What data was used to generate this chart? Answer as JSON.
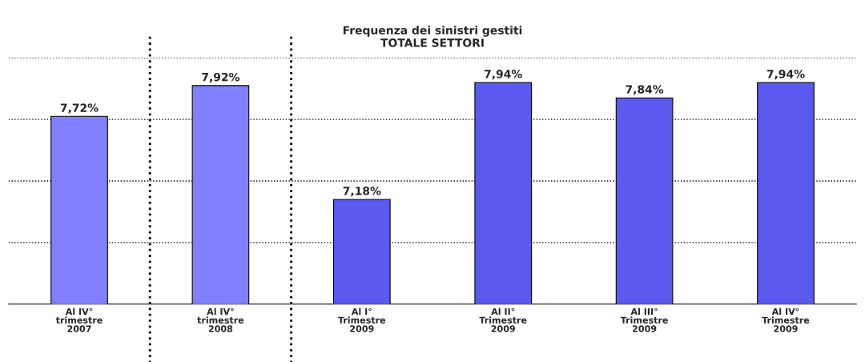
{
  "chart_data": {
    "type": "bar",
    "title": "Frequenza dei sinistri gestiti\nTOTALE SETTORI",
    "categories": [
      "Al IV°\ntrimestre\n2007",
      "Al IV°\ntrimestre\n2008",
      "Al I°\nTrimestre\n2009",
      "Al II°\nTrimestre\n2009",
      "Al III°\nTrimestre\n2009",
      "Al IV°\nTrimestre\n2009"
    ],
    "values": [
      7.72,
      7.92,
      7.18,
      7.94,
      7.84,
      7.94
    ],
    "value_labels": [
      "7,72%",
      "7,92%",
      "7,18%",
      "7,94%",
      "7,84%",
      "7,94%"
    ],
    "colors": [
      "#8080ff",
      "#8080ff",
      "#5a5af0",
      "#5a5af0",
      "#5a5af0",
      "#5a5af0"
    ],
    "ylim": [
      6.5,
      8.1
    ],
    "yticks": [
      {
        "value": 6.9,
        "label": null
      },
      {
        "value": 7.3,
        "label": null
      },
      {
        "value": 7.7,
        "label": null
      },
      {
        "value": 8.1,
        "label": null
      }
    ],
    "tick_labels": "x",
    "grid": "y"
  }
}
